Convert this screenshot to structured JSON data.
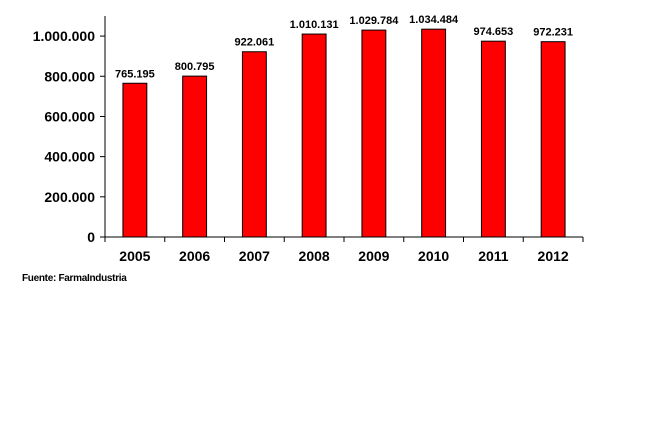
{
  "chart_data": {
    "type": "bar",
    "categories": [
      "2005",
      "2006",
      "2007",
      "2008",
      "2009",
      "2010",
      "2011",
      "2012"
    ],
    "values": [
      765195,
      800795,
      922061,
      1010131,
      1029784,
      1034484,
      974653,
      972231
    ],
    "data_labels": [
      "765.195",
      "800.795",
      "922.061",
      "1.010.131",
      "1.029.784",
      "1.034.484",
      "974.653",
      "972.231"
    ],
    "y_ticks": [
      0,
      200000,
      400000,
      600000,
      800000,
      1000000
    ],
    "y_tick_labels": [
      "0",
      "200.000",
      "400.000",
      "600.000",
      "800.000",
      "1.000.000"
    ],
    "ylim": [
      0,
      1100000
    ],
    "title": "",
    "xlabel": "",
    "ylabel": "",
    "grid": false,
    "legend": "none",
    "bar_color": "#ff0000"
  },
  "source": "Fuente: FarmaIndustria"
}
